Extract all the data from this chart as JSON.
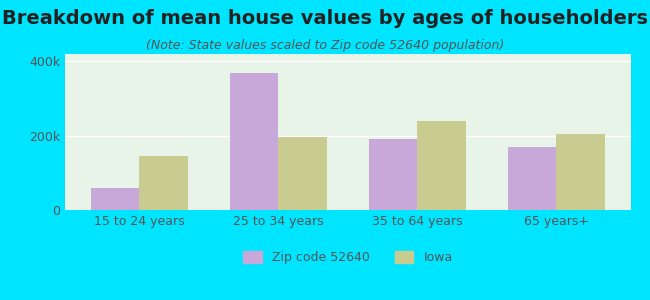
{
  "title": "Breakdown of mean house values by ages of householders",
  "subtitle": "(Note: State values scaled to Zip code 52640 population)",
  "categories": [
    "15 to 24 years",
    "25 to 34 years",
    "35 to 64 years",
    "65 years+"
  ],
  "zip_values": [
    60000,
    370000,
    190000,
    170000
  ],
  "iowa_values": [
    145000,
    197000,
    240000,
    205000
  ],
  "zip_color": "#c8a8d8",
  "iowa_color": "#c8cc90",
  "background_outer": "#00e5ff",
  "background_inner": "#e8f4e8",
  "ylim": [
    0,
    420000
  ],
  "yticks": [
    0,
    200000,
    400000
  ],
  "ytick_labels": [
    "0",
    "200k",
    "400k"
  ],
  "legend_zip": "Zip code 52640",
  "legend_iowa": "Iowa",
  "bar_width": 0.35,
  "title_fontsize": 14,
  "subtitle_fontsize": 9,
  "tick_fontsize": 9,
  "legend_fontsize": 9
}
